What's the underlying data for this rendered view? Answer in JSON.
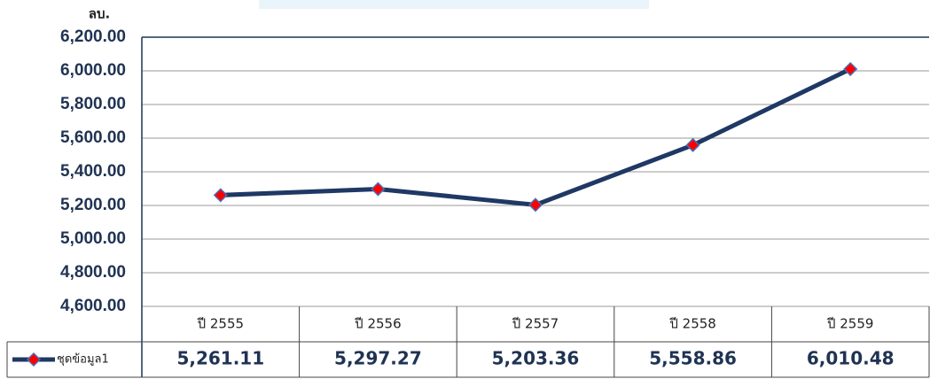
{
  "chart_data": {
    "type": "line",
    "y_unit": "ลบ.",
    "categories": [
      "ปี 2555",
      "ปี 2556",
      "ปี 2557",
      "ปี 2558",
      "ปี 2559"
    ],
    "series": [
      {
        "name": "ชุดข้อมูล1",
        "color": "#1f3864",
        "marker_color": "#ff0000",
        "values": [
          5261.11,
          5297.27,
          5203.36,
          5558.86,
          6010.48
        ],
        "value_labels": [
          "5,261.11",
          "5,297.27",
          "5,203.36",
          "5,558.86",
          "6,010.48"
        ]
      }
    ],
    "ylim": [
      4600,
      6200
    ],
    "yticks": [
      {
        "value": 4600,
        "label": "4,600.00"
      },
      {
        "value": 4800,
        "label": "4,800.00"
      },
      {
        "value": 5000,
        "label": "5,000.00"
      },
      {
        "value": 5200,
        "label": "5,200.00"
      },
      {
        "value": 5400,
        "label": "5,400.00"
      },
      {
        "value": 5600,
        "label": "5,600.00"
      },
      {
        "value": 5800,
        "label": "5,800.00"
      },
      {
        "value": 6000,
        "label": "6,000.00"
      },
      {
        "value": 6200,
        "label": "6,200.00"
      }
    ],
    "grid": true,
    "data_table": true
  }
}
